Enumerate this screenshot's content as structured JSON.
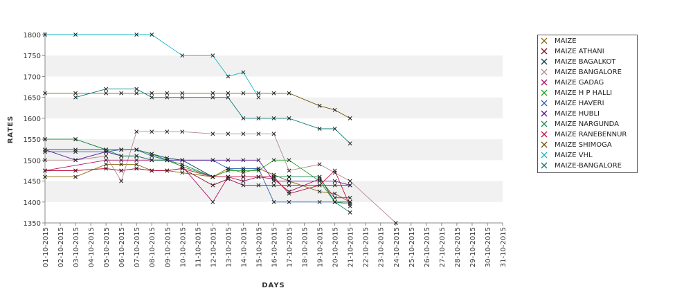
{
  "chart_data": {
    "type": "line",
    "title": "",
    "xlabel": "DAYS",
    "ylabel": "RATES",
    "ylim": [
      1350,
      1800
    ],
    "yticks": [
      1350,
      1400,
      1450,
      1500,
      1550,
      1600,
      1650,
      1700,
      1750,
      1800
    ],
    "grid": "alternating horizontal bands",
    "legend_position": "right",
    "categories": [
      "01-10-2015",
      "02-10-2015",
      "03-10-2015",
      "04-10-2015",
      "05-10-2015",
      "06-10-2015",
      "07-10-2015",
      "08-10-2015",
      "09-10-2015",
      "10-10-2015",
      "11-10-2015",
      "12-10-2015",
      "13-10-2015",
      "14-10-2015",
      "15-10-2015",
      "16-10-2015",
      "17-10-2015",
      "18-10-2015",
      "19-10-2015",
      "20-10-2015",
      "21-10-2015",
      "22-10-2015",
      "23-10-2015",
      "24-10-2015",
      "25-10-2015",
      "26-10-2015",
      "27-10-2015",
      "28-10-2015",
      "29-10-2015",
      "30-10-2015",
      "31-10-2015"
    ],
    "series": [
      {
        "name": "MAIZE",
        "color": "#8b6914",
        "values": [
          1460,
          null,
          1460,
          null,
          1490,
          1490,
          1490,
          1475,
          1475,
          1470,
          null,
          1460,
          1480,
          1470,
          1480,
          1465,
          1450,
          null,
          1425,
          1420,
          1400,
          null,
          null,
          null,
          null,
          null,
          null,
          null,
          null,
          null,
          null
        ]
      },
      {
        "name": "MAIZE ATHANI",
        "color": "#8b0a2a",
        "values": [
          1475,
          null,
          1475,
          null,
          1480,
          1475,
          1480,
          1475,
          1475,
          1480,
          null,
          1440,
          1455,
          1440,
          1440,
          1440,
          1440,
          null,
          1440,
          1440,
          1440,
          null,
          null,
          null,
          null,
          null,
          null,
          null,
          null,
          null,
          null
        ]
      },
      {
        "name": "MAIZE BAGALKOT",
        "color": "#0a3b5c",
        "values": [
          1525,
          null,
          1525,
          null,
          1525,
          1525,
          1525,
          1515,
          1505,
          1500,
          null,
          1460,
          1460,
          1460,
          1460,
          1460,
          1460,
          null,
          1460,
          1400,
          1400,
          null,
          null,
          null,
          null,
          null,
          null,
          null,
          null,
          null,
          null
        ]
      },
      {
        "name": "MAIZE BANGALORE",
        "color": "#b08a8a",
        "values": [
          1500,
          null,
          1500,
          null,
          1510,
          1450,
          1568,
          1568,
          1568,
          1568,
          null,
          1563,
          1563,
          1563,
          1563,
          1563,
          1475,
          null,
          1490,
          1470,
          1450,
          null,
          null,
          1350,
          null,
          null,
          null,
          null,
          null,
          null,
          null
        ]
      },
      {
        "name": "MAIZE GADAG",
        "color": "#b0106a",
        "values": [
          1475,
          null,
          null,
          null,
          1500,
          1500,
          1500,
          1500,
          1500,
          1485,
          null,
          1400,
          1460,
          1450,
          1460,
          1455,
          1425,
          null,
          1455,
          1410,
          1410,
          null,
          null,
          null,
          null,
          null,
          null,
          null,
          null,
          null,
          null
        ]
      },
      {
        "name": "MAIZE H P HALLI",
        "color": "#22a022",
        "values": [
          1550,
          null,
          1550,
          null,
          1525,
          1525,
          1525,
          1515,
          1500,
          1485,
          null,
          1460,
          1475,
          1475,
          1475,
          1500,
          1500,
          null,
          1450,
          1400,
          1395,
          null,
          null,
          null,
          null,
          null,
          null,
          null,
          null,
          null,
          null
        ]
      },
      {
        "name": "MAIZE HAVERI",
        "color": "#2b5fb0",
        "values": [
          1520,
          null,
          1520,
          null,
          1520,
          1525,
          1525,
          1510,
          1500,
          1500,
          null,
          1500,
          1480,
          1480,
          1480,
          1400,
          1400,
          null,
          1400,
          1400,
          1400,
          null,
          null,
          null,
          null,
          null,
          null,
          null,
          null,
          null,
          null
        ]
      },
      {
        "name": "MAIZE HUBLI",
        "color": "#5a14a0",
        "values": [
          1525,
          null,
          1500,
          null,
          1520,
          1510,
          1510,
          1500,
          1500,
          1500,
          null,
          1500,
          1500,
          1500,
          1500,
          1450,
          1450,
          null,
          1450,
          1450,
          1440,
          null,
          null,
          null,
          null,
          null,
          null,
          null,
          null,
          null,
          null
        ]
      },
      {
        "name": "MAIZE NARGUNDA",
        "color": "#1a8a5a",
        "values": [
          1550,
          null,
          1550,
          null,
          1525,
          1510,
          1510,
          1500,
          1500,
          1490,
          null,
          1460,
          1460,
          1460,
          1460,
          1460,
          1460,
          null,
          1460,
          1400,
          1375,
          null,
          null,
          null,
          null,
          null,
          null,
          null,
          null,
          null,
          null
        ]
      },
      {
        "name": "MAIZE RANEBENNUR",
        "color": "#c0143c",
        "values": [
          1475,
          null,
          1475,
          null,
          1480,
          1475,
          1480,
          1475,
          1475,
          1480,
          null,
          1460,
          1460,
          1460,
          1460,
          1460,
          1420,
          null,
          1440,
          1475,
          1390,
          null,
          null,
          null,
          null,
          null,
          null,
          null,
          null,
          null,
          null
        ]
      },
      {
        "name": "MAIZE SHIMOGA",
        "color": "#6b5a00",
        "values": [
          1660,
          null,
          1660,
          null,
          1660,
          1660,
          1660,
          1660,
          1660,
          1660,
          null,
          1660,
          1660,
          1660,
          1660,
          1660,
          1660,
          null,
          1630,
          1620,
          1600,
          null,
          null,
          null,
          null,
          null,
          null,
          null,
          null,
          null,
          null
        ]
      },
      {
        "name": "MAIZE VHL",
        "color": "#14b8c0",
        "values": [
          1800,
          null,
          1800,
          null,
          null,
          null,
          1800,
          1800,
          null,
          1750,
          null,
          1750,
          1700,
          1710,
          1650,
          null,
          null,
          null,
          null,
          null,
          null,
          null,
          null,
          null,
          null,
          null,
          null,
          null,
          null,
          null,
          null
        ]
      },
      {
        "name": "MAIZE-BANGALORE",
        "color": "#0a7a7a",
        "values": [
          null,
          null,
          1650,
          null,
          1670,
          null,
          1670,
          1650,
          1650,
          1650,
          null,
          1650,
          1650,
          1600,
          1600,
          1600,
          1600,
          null,
          1575,
          1575,
          1540,
          null,
          null,
          null,
          null,
          null,
          null,
          null,
          null,
          null,
          null
        ]
      }
    ]
  }
}
